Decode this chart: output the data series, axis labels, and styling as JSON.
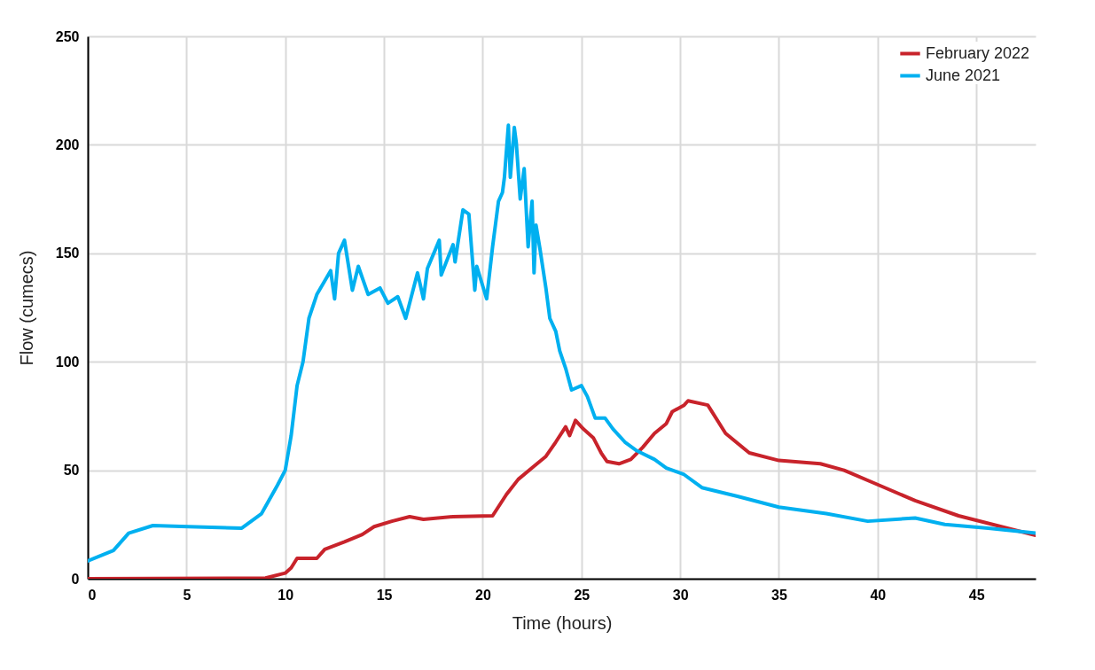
{
  "chart_data": {
    "type": "line",
    "xlabel": "Time (hours)",
    "ylabel": "Flow (cumecs)",
    "xlim": [
      0,
      48
    ],
    "ylim": [
      0,
      250
    ],
    "xticks": [
      0,
      5,
      10,
      15,
      20,
      25,
      30,
      35,
      40,
      45
    ],
    "yticks": [
      0,
      50,
      100,
      150,
      200,
      250
    ],
    "grid": true,
    "legend": "top right",
    "series": [
      {
        "name": "February 2022",
        "color": "#c8232b",
        "x": [
          0,
          9,
          10,
          10.3,
          10.6,
          11.6,
          12.0,
          13.0,
          13.9,
          14.5,
          15.4,
          16.3,
          17.0,
          18.5,
          20.5,
          21.2,
          21.8,
          22.6,
          23.2,
          23.7,
          24.2,
          24.4,
          24.7,
          25.1,
          25.6,
          26.0,
          26.3,
          26.9,
          27.5,
          28.1,
          28.7,
          29.3,
          29.6,
          30.2,
          30.4,
          31.4,
          32.3,
          33.5,
          35,
          37.1,
          38.3,
          40.1,
          41.9,
          44.1,
          48
        ],
        "values": [
          0,
          0.3,
          2.6,
          5,
          9.4,
          9.4,
          13.5,
          17,
          20.4,
          24,
          26.5,
          28.6,
          27.4,
          28.6,
          29,
          38.8,
          45.8,
          51.9,
          56.4,
          63,
          70,
          66,
          73,
          69,
          65,
          58,
          54,
          53,
          55,
          60.5,
          67,
          71.5,
          77,
          80,
          82,
          80,
          67,
          58,
          54.5,
          53,
          50,
          43,
          36,
          29,
          20
        ]
      },
      {
        "name": "June 2021",
        "color": "#00b0f0",
        "x": [
          0,
          1.3,
          2.07,
          3.3,
          5.1,
          7.8,
          8.8,
          9.6,
          10,
          10.3,
          10.6,
          10.9,
          11.2,
          11.6,
          12.3,
          12.5,
          12.7,
          13.0,
          13.4,
          13.7,
          14.2,
          14.8,
          15.2,
          15.7,
          16.1,
          16.7,
          17.0,
          17.2,
          17.8,
          17.9,
          18.5,
          18.6,
          19.0,
          19.3,
          19.6,
          19.7,
          20.2,
          20.5,
          20.8,
          21.0,
          21.1,
          21.3,
          21.4,
          21.6,
          21.7,
          21.9,
          22.1,
          22.3,
          22.5,
          22.6,
          22.7,
          22.9,
          23.2,
          23.4,
          23.7,
          23.9,
          24.2,
          24.5,
          25.0,
          25.3,
          25.7,
          26.2,
          26.6,
          27.2,
          27.8,
          28.7,
          29.3,
          30.2,
          31.1,
          32.9,
          35,
          37.4,
          39.5,
          41.9,
          43.4,
          45.6,
          48
        ],
        "values": [
          8.2,
          13,
          21,
          24.5,
          24,
          23.3,
          30,
          43,
          50,
          66,
          89,
          100,
          120,
          131,
          142,
          129,
          150,
          156,
          133,
          144,
          131,
          134,
          127,
          130,
          120,
          141,
          129,
          143,
          156,
          140,
          154,
          146,
          170,
          168,
          133,
          144,
          129,
          153,
          174,
          178,
          185,
          209,
          185,
          208,
          201,
          175,
          189,
          153,
          174,
          141,
          163,
          152,
          134,
          120,
          114,
          105,
          97,
          87,
          89,
          84,
          74,
          74,
          69,
          63,
          59,
          55,
          51,
          48,
          42,
          38,
          33,
          30,
          26.5,
          28,
          25,
          23.3,
          21
        ]
      }
    ]
  }
}
